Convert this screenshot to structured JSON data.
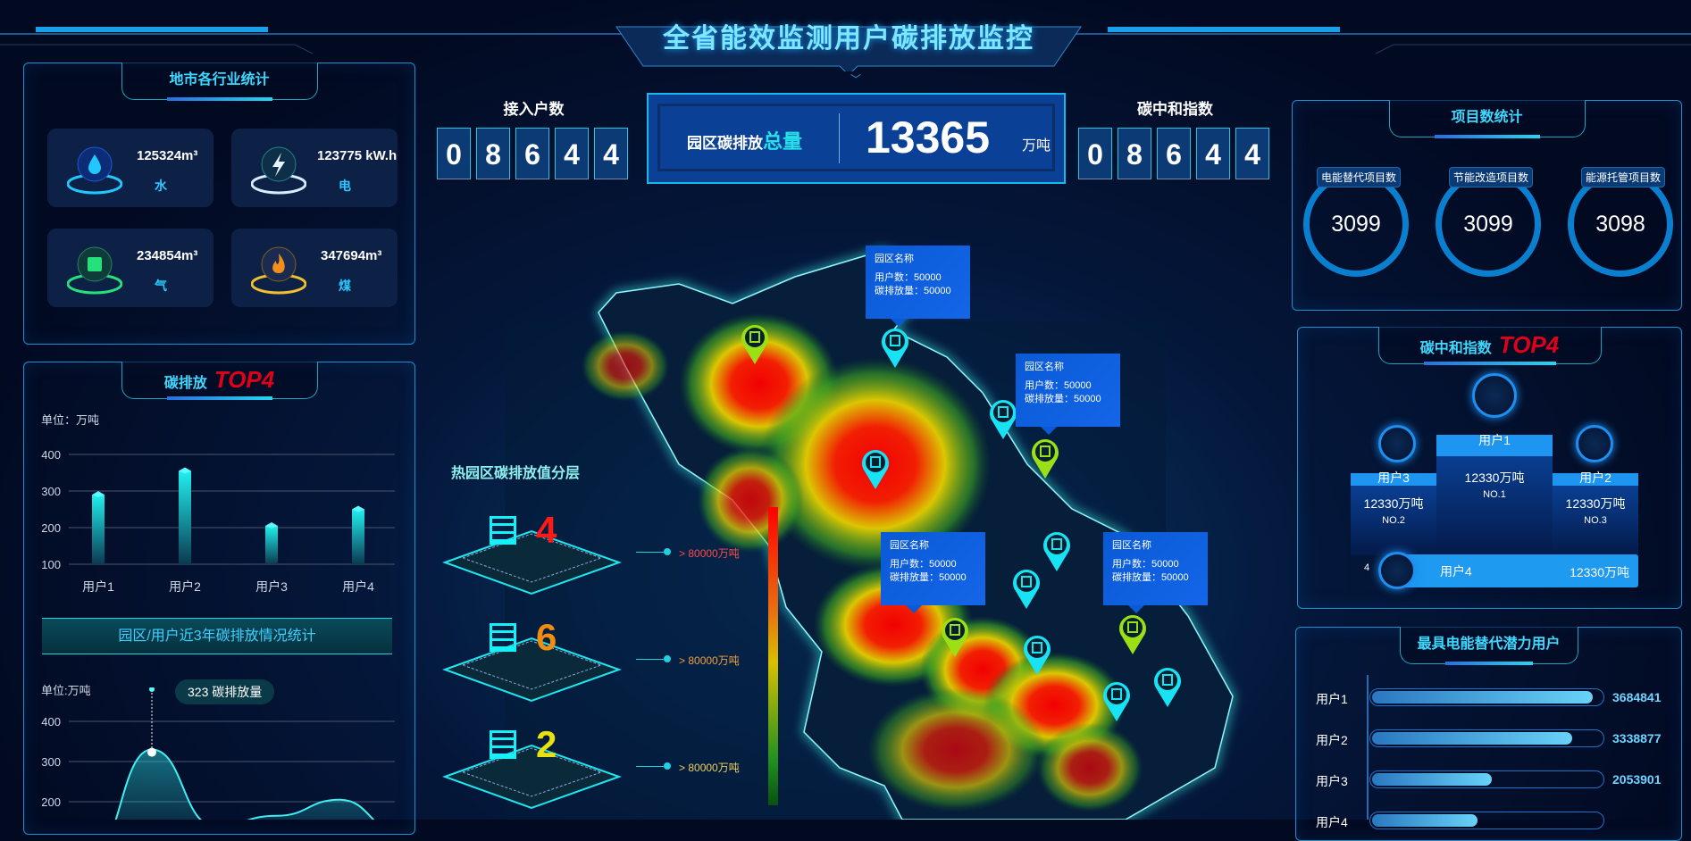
{
  "header": {
    "title": "全省能效监测用户碳排放监控"
  },
  "industry": {
    "title": "地市各行业统计",
    "items": [
      {
        "value": "125324m³",
        "label": "水",
        "icon": "water-drop-icon",
        "color": "#21c8ff"
      },
      {
        "value": "123775 kW.h",
        "label": "电",
        "icon": "lightning-icon",
        "color": "#d8ecff"
      },
      {
        "value": "234854m³",
        "label": "气",
        "icon": "gas-icon",
        "color": "#26e07c"
      },
      {
        "value": "347694m³",
        "label": "煤",
        "icon": "flame-icon",
        "color": "#f0c030"
      }
    ]
  },
  "emission_top": {
    "title": "碳排放",
    "badge": "TOP4",
    "unit": "单位：万吨"
  },
  "trend": {
    "banner": "园区/用户近3年碳排放情况统计",
    "unit": "单位:万吨",
    "tooltip_value": "323",
    "tooltip_label": "碳排放量"
  },
  "chart_data": [
    {
      "type": "bar",
      "categories": [
        "用户1",
        "用户2",
        "用户3",
        "用户4"
      ],
      "values": [
        290,
        355,
        205,
        250
      ],
      "ylabel": "单位：万吨",
      "yticks": [
        100,
        200,
        300,
        400
      ],
      "ylim": [
        100,
        400
      ],
      "grid": true
    },
    {
      "type": "area",
      "values": [
        60,
        330,
        140,
        165,
        205,
        120
      ],
      "ylabel": "单位:万吨",
      "yticks": [
        200,
        300,
        400
      ],
      "highlight": {
        "value": 323,
        "label": "碳排放量"
      },
      "grid": true
    }
  ],
  "counters": {
    "households_label": "接入户数",
    "households_digits": [
      "0",
      "8",
      "6",
      "4",
      "4"
    ],
    "neutral_label": "碳中和指数",
    "neutral_digits": [
      "0",
      "8",
      "6",
      "4",
      "4"
    ],
    "total_label_a": "园区碳排放",
    "total_label_b": "总量",
    "total_value": "13365",
    "total_unit": "万吨"
  },
  "layers": {
    "title": "热园区碳排放值分层",
    "items": [
      {
        "count": "4",
        "text": "> 80000万吨",
        "color": "#ff1a1a",
        "textcolor": "#ff4a4a"
      },
      {
        "count": "6",
        "text": "> 80000万吨",
        "color": "#f08c10",
        "textcolor": "#f0a040"
      },
      {
        "count": "2",
        "text": "> 80000万吨",
        "color": "#e8e010",
        "textcolor": "#f0d060"
      }
    ]
  },
  "popups": [
    {
      "name": "园区名称",
      "users": "用户数：50000",
      "emission": "碳排放量：50000"
    },
    {
      "name": "园区名称",
      "users": "用户数：50000",
      "emission": "碳排放量：50000"
    },
    {
      "name": "园区名称",
      "users": "用户数：50000",
      "emission": "碳排放量：50000"
    },
    {
      "name": "园区名称",
      "users": "用户数：50000",
      "emission": "碳排放量：50000"
    }
  ],
  "projects": {
    "title": "项目数统计",
    "items": [
      {
        "label": "电能替代项目数",
        "value": "3099"
      },
      {
        "label": "节能改造项目数",
        "value": "3099"
      },
      {
        "label": "能源托管项目数",
        "value": "3098"
      }
    ]
  },
  "neutral_top": {
    "title": "碳中和指数",
    "badge": "TOP4",
    "first": {
      "name": "用户1",
      "value": "12330万吨",
      "rank": "NO.1"
    },
    "second": {
      "name": "用户3",
      "value": "12330万吨",
      "rank": "NO.2"
    },
    "third": {
      "name": "用户2",
      "value": "12330万吨",
      "rank": "NO.3"
    },
    "fourth": {
      "index": "4",
      "name": "用户4",
      "value": "12330万吨"
    }
  },
  "potential": {
    "title": "最具电能替代潜力用户",
    "items": [
      {
        "name": "用户1",
        "value": "3684841",
        "pct": 96
      },
      {
        "name": "用户2",
        "value": "3338877",
        "pct": 87
      },
      {
        "name": "用户3",
        "value": "2053901",
        "pct": 52
      },
      {
        "name": "用户4",
        "value": "",
        "pct": 46
      }
    ]
  }
}
